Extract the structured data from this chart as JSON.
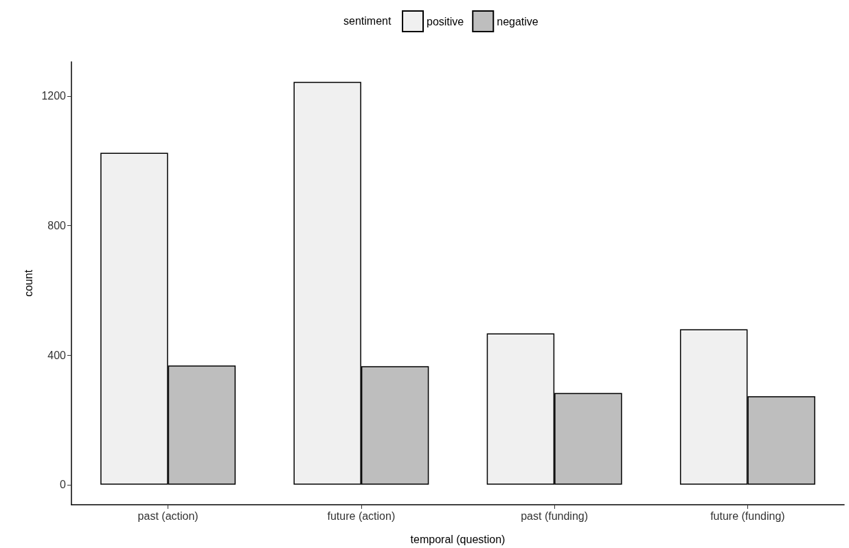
{
  "chart_data": {
    "type": "bar",
    "xlabel": "temporal (question)",
    "ylabel": "count",
    "legend_title": "sentiment",
    "categories": [
      "past (action)",
      "future (action)",
      "past (funding)",
      "future (funding)"
    ],
    "series": [
      {
        "name": "positive",
        "color": "#f0f0f0",
        "values": [
          1025,
          1244,
          467,
          480
        ]
      },
      {
        "name": "negative",
        "color": "#bebebe",
        "values": [
          368,
          366,
          283,
          273
        ]
      }
    ],
    "ylim": [
      -62,
      1306
    ],
    "yticks": [
      0,
      400,
      800,
      1200
    ],
    "grid": false,
    "legend": "top"
  }
}
